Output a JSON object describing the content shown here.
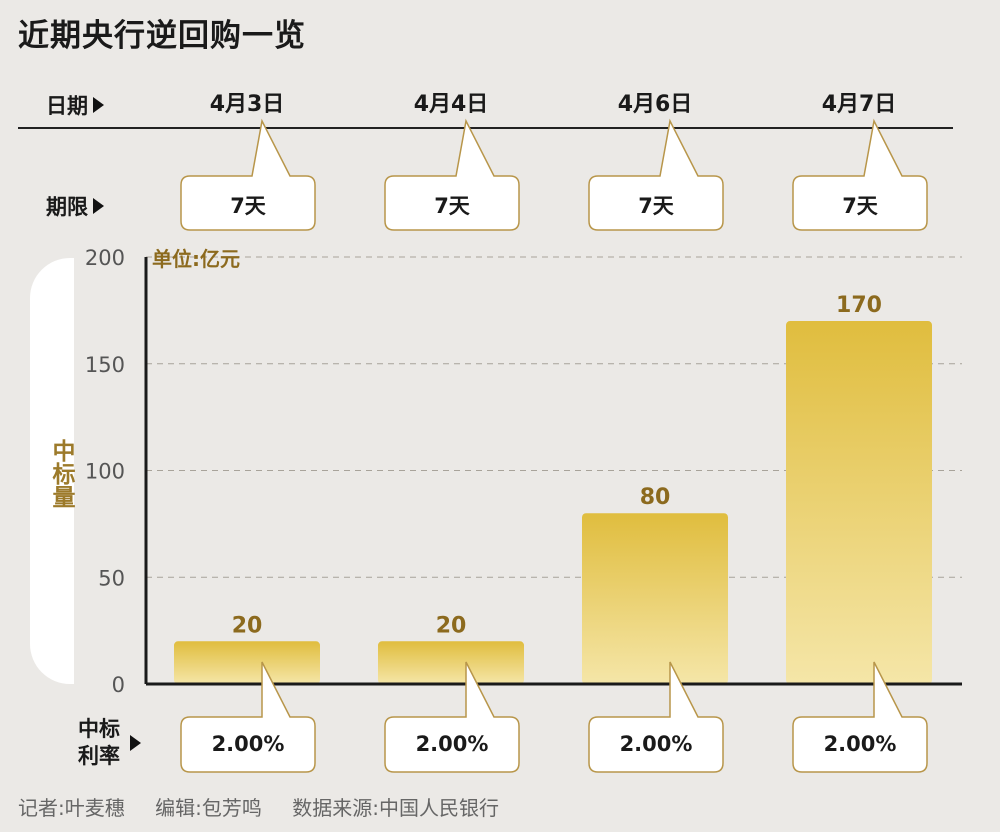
{
  "title": "近期央行逆回购一览",
  "rows": {
    "date_label": "日期",
    "term_label": "期限",
    "rate_label_line1": "中标",
    "rate_label_line2": "利率"
  },
  "dates": [
    "4月3日",
    "4月4日",
    "4月6日",
    "4月7日"
  ],
  "terms": [
    "7天",
    "7天",
    "7天",
    "7天"
  ],
  "rates": [
    "2.00%",
    "2.00%",
    "2.00%",
    "2.00%"
  ],
  "yaxis_title": "中标量",
  "footer": {
    "reporter": "记者:叶麦穗",
    "editor": "编辑:包芳鸣",
    "source": "数据来源:中国人民银行"
  },
  "colors": {
    "bar_top": "#e0bd3e",
    "bar_bottom": "#f5e6a8",
    "label_gold": "#8c6a1e",
    "background": "#ebe9e6"
  },
  "chart_data": {
    "type": "bar",
    "categories": [
      "4月3日",
      "4月4日",
      "4月6日",
      "4月7日"
    ],
    "values": [
      20,
      20,
      80,
      170
    ],
    "value_labels": [
      "20",
      "20",
      "80",
      "170"
    ],
    "ylabel": "中标量",
    "unit": "单位:亿元",
    "ylim": [
      0,
      200
    ],
    "yticks": [
      0,
      50,
      100,
      150,
      200
    ],
    "grid": true
  }
}
